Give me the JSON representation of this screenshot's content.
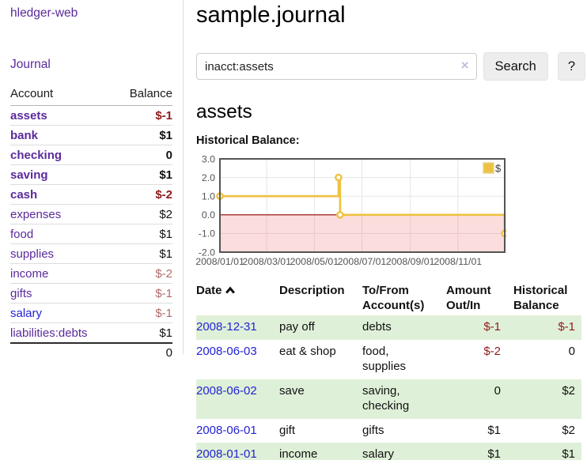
{
  "app": {
    "title": "hledger-web"
  },
  "colors": {
    "link_purple": "#5b2a9b",
    "link_blue": "#2323d3",
    "negative_strong": "#8e1b1b",
    "negative_soft": "#b26b6b",
    "row_stripe_green": "#dff0d8",
    "series_gold": "#edc240"
  },
  "sidebar": {
    "journal_label": "Journal",
    "accounts": {
      "account_header": "Account",
      "balance_header": "Balance",
      "rows": [
        {
          "account": "assets",
          "balance": "$-1",
          "indent": 1,
          "emph": true,
          "tone": "neg-strong",
          "link": "purple"
        },
        {
          "account": "bank",
          "balance": "$1",
          "indent": 2,
          "emph": true,
          "tone": "normal",
          "link": "purple"
        },
        {
          "account": "checking",
          "balance": "0",
          "indent": 3,
          "emph": true,
          "tone": "normal",
          "link": "purple"
        },
        {
          "account": "saving",
          "balance": "$1",
          "indent": 3,
          "emph": true,
          "tone": "normal",
          "link": "purple"
        },
        {
          "account": "cash",
          "balance": "$-2",
          "indent": 2,
          "emph": true,
          "tone": "neg-strong",
          "link": "purple"
        },
        {
          "account": "expenses",
          "balance": "$2",
          "indent": 1,
          "emph": false,
          "tone": "normal",
          "link": "purple"
        },
        {
          "account": "food",
          "balance": "$1",
          "indent": 2,
          "emph": false,
          "tone": "normal",
          "link": "purple"
        },
        {
          "account": "supplies",
          "balance": "$1",
          "indent": 2,
          "emph": false,
          "tone": "normal",
          "link": "purple"
        },
        {
          "account": "income",
          "balance": "$-2",
          "indent": 1,
          "emph": false,
          "tone": "neg-soft",
          "link": "purple"
        },
        {
          "account": "gifts",
          "balance": "$-1",
          "indent": 2,
          "emph": false,
          "tone": "neg-soft",
          "link": "purple"
        },
        {
          "account": "salary",
          "balance": "$-1",
          "indent": 2,
          "emph": false,
          "tone": "neg-soft",
          "link": "blue"
        },
        {
          "account": "liabilities:debts",
          "balance": "$1",
          "indent": 1,
          "emph": false,
          "tone": "normal",
          "link": "purple"
        }
      ],
      "total": "0"
    }
  },
  "main": {
    "title": "sample.journal",
    "search": {
      "value": "inacct:assets",
      "clear_icon": "×",
      "button_label": "Search",
      "help_label": "?"
    },
    "account_heading": "assets"
  },
  "chart_data": {
    "type": "line",
    "title": "Historical Balance:",
    "style": "steps",
    "series": [
      {
        "name": "$",
        "color": "#edc240",
        "points": [
          [
            "2008-01-01",
            1
          ],
          [
            "2008-06-01",
            2
          ],
          [
            "2008-06-03",
            0
          ],
          [
            "2008-12-31",
            -1
          ]
        ]
      }
    ],
    "x_range": [
      "2008-01-01",
      "2008-12-31"
    ],
    "x_ticks": [
      {
        "date": "2008-01-01",
        "label": "2008/01/01"
      },
      {
        "date": "2008-03-01",
        "label": "2008/03/01"
      },
      {
        "date": "2008-05-01",
        "label": "2008/05/01"
      },
      {
        "date": "2008-07-01",
        "label": "2008/07/01"
      },
      {
        "date": "2008-09-01",
        "label": "2008/09/01"
      },
      {
        "date": "2008-11-01",
        "label": "2008/11/01"
      }
    ],
    "y_ticks": [
      {
        "value": 3,
        "label": "3.0"
      },
      {
        "value": 2,
        "label": "2.0"
      },
      {
        "value": 1,
        "label": "1.0"
      },
      {
        "value": 0,
        "label": "0.0"
      },
      {
        "value": -1,
        "label": "-1.0"
      },
      {
        "value": -2,
        "label": "-2.0"
      }
    ],
    "ylim": [
      -2,
      3
    ],
    "grid": true,
    "legend": {
      "position": "top-right",
      "label": "$"
    },
    "colors": {
      "grid": "#e6e6e6",
      "border": "#545454",
      "zero_line": "#8b0000",
      "negative_fill": "rgba(238,85,85,0.2)",
      "tick_text": "#545454",
      "marker_fill": "#ffffff"
    }
  },
  "register": {
    "headers": {
      "date": "Date",
      "description": "Description",
      "accounts": "To/From Account(s)",
      "amount": "Amount Out/In",
      "balance": "Historical Balance"
    },
    "rows": [
      {
        "date": "2008-12-31",
        "description": "pay off",
        "accounts": "debts",
        "amount": "$-1",
        "balance": "$-1"
      },
      {
        "date": "2008-06-03",
        "description": "eat & shop",
        "accounts": "food, supplies",
        "amount": "$-2",
        "balance": "0"
      },
      {
        "date": "2008-06-02",
        "description": "save",
        "accounts": "saving, checking",
        "amount": "0",
        "balance": "$2"
      },
      {
        "date": "2008-06-01",
        "description": "gift",
        "accounts": "gifts",
        "amount": "$1",
        "balance": "$2"
      },
      {
        "date": "2008-01-01",
        "description": "income",
        "accounts": "salary",
        "amount": "$1",
        "balance": "$1"
      }
    ]
  }
}
